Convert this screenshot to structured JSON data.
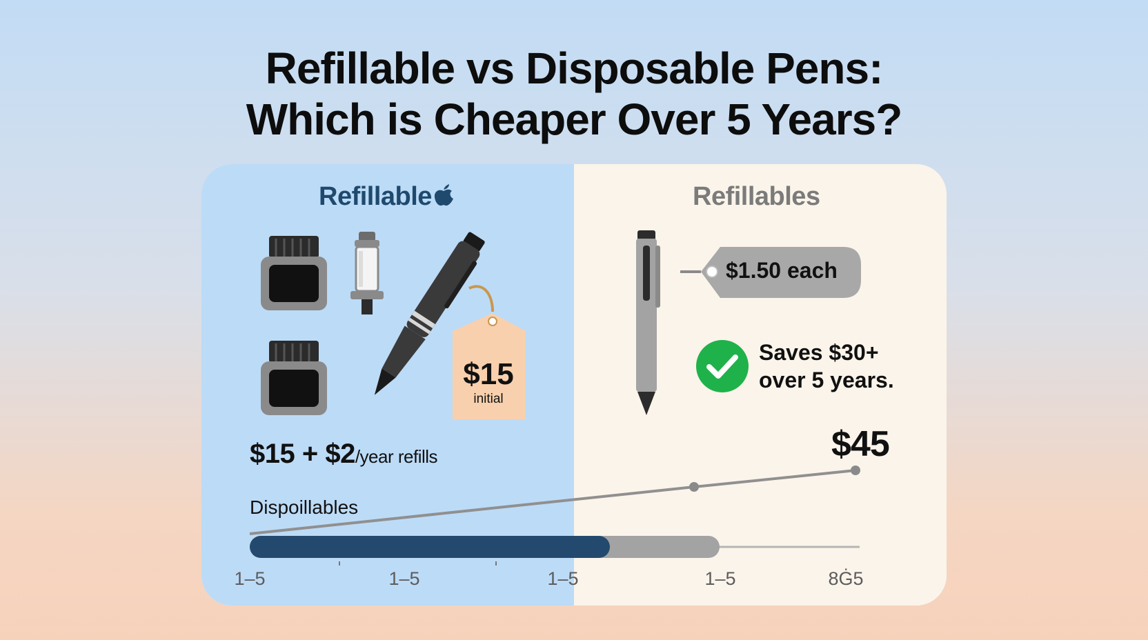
{
  "title": {
    "line1": "Refillable vs Disposable Pens:",
    "line2": "Which is Cheaper Over 5 Years?"
  },
  "left_panel": {
    "heading": "Refillable",
    "heading_icon": "apple-icon",
    "price_tag": {
      "amount": "$15",
      "label": "initial"
    },
    "cost_formula": {
      "main": "$15 + $2",
      "suffix": "/year refills"
    },
    "color": "#bcdbf7",
    "heading_color": "#1f4a6e"
  },
  "right_panel": {
    "heading": "Refillables",
    "price_tag": {
      "text": "$1.50 each"
    },
    "savings": {
      "line1": "Saves $30+",
      "line2": "over 5 years."
    },
    "total": "$45",
    "color": "#fbf4ea"
  },
  "bottom": {
    "label": "Dispoillables",
    "progress_fraction": 0.59,
    "progress_total_fraction": 0.77,
    "bar_color": "#234a6e",
    "track_color": "#a3a3a3",
    "tick_labels": [
      "1–5",
      "1–5",
      "1–5",
      "1–5",
      "8Ġ5"
    ]
  },
  "colors": {
    "check_green": "#1fb24a",
    "tag_peach": "#f8d0ad",
    "tag_gray": "#a8a8a8",
    "ink_dark": "#2c2c2c"
  }
}
